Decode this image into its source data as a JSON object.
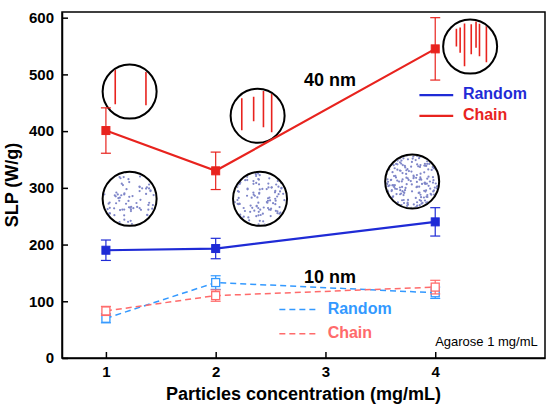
{
  "chart_data": {
    "type": "line",
    "xlabel": "Particles concentration (mg/mL)",
    "ylabel": "SLP (W/g)",
    "x": [
      1,
      2,
      4
    ],
    "xlim": [
      0.6,
      5.0
    ],
    "xticks": [
      1,
      2,
      3,
      4
    ],
    "ylim": [
      0,
      610
    ],
    "yticks": [
      0,
      100,
      200,
      300,
      400,
      500,
      600
    ],
    "legend": "right",
    "annotations": [
      "40 nm",
      "10 nm",
      "Agarose 1 mg/mL"
    ],
    "series": [
      {
        "name": "Random",
        "color": "#1f2bd6",
        "line_style": "solid",
        "marker": "square",
        "values": [
          190,
          193,
          240
        ],
        "errors": [
          18,
          18,
          25
        ]
      },
      {
        "name": "Chain",
        "color": "#e8231e",
        "line_style": "solid",
        "marker": "square",
        "values": [
          401,
          330,
          545
        ],
        "errors": [
          40,
          33,
          55
        ]
      },
      {
        "name": "Random",
        "color": "#3399ff",
        "line_style": "dashed",
        "marker": "open-square",
        "values": [
          70,
          133,
          115
        ],
        "errors": [
          8,
          12,
          10
        ]
      },
      {
        "name": "Chain",
        "color": "#ff6b6b",
        "line_style": "dashed",
        "marker": "open-square",
        "values": [
          83,
          110,
          125
        ],
        "errors": [
          8,
          10,
          12
        ]
      }
    ]
  }
}
